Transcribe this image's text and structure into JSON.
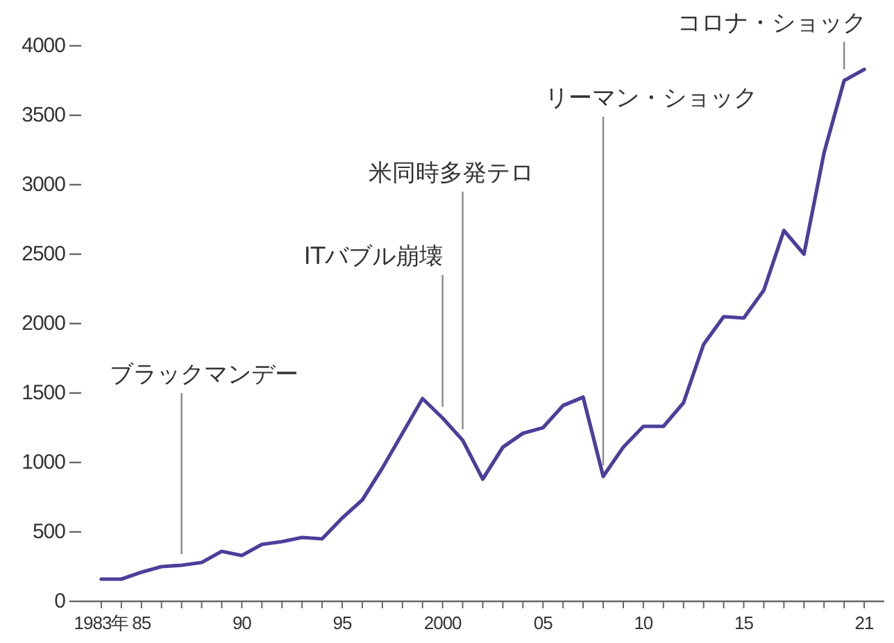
{
  "chart_data": {
    "type": "line",
    "x": [
      1983,
      1984,
      1985,
      1986,
      1987,
      1988,
      1989,
      1990,
      1991,
      1992,
      1993,
      1994,
      1995,
      1996,
      1997,
      1998,
      1999,
      2000,
      2001,
      2002,
      2003,
      2004,
      2005,
      2006,
      2007,
      2008,
      2009,
      2010,
      2011,
      2012,
      2013,
      2014,
      2015,
      2016,
      2017,
      2018,
      2019,
      2020,
      2021
    ],
    "series": [
      {
        "color": "#4b3f9c",
        "values": [
          160,
          160,
          210,
          250,
          260,
          280,
          360,
          330,
          410,
          430,
          460,
          450,
          600,
          730,
          960,
          1210,
          1460,
          1320,
          1160,
          880,
          1110,
          1210,
          1250,
          1410,
          1470,
          900,
          1110,
          1260,
          1260,
          1430,
          1850,
          2050,
          2040,
          2240,
          2670,
          2500,
          3230,
          3750,
          3830
        ]
      }
    ],
    "xlim": [
      1982,
      2022
    ],
    "ylim": [
      0,
      4000
    ],
    "xticks": [
      {
        "value": 1983,
        "label": "1983年"
      },
      {
        "value": 1984,
        "label": null
      },
      {
        "value": 1985,
        "label": "85"
      },
      {
        "value": 1986,
        "label": null
      },
      {
        "value": 1987,
        "label": null
      },
      {
        "value": 1988,
        "label": null
      },
      {
        "value": 1989,
        "label": null
      },
      {
        "value": 1990,
        "label": "90"
      },
      {
        "value": 1991,
        "label": null
      },
      {
        "value": 1992,
        "label": null
      },
      {
        "value": 1993,
        "label": null
      },
      {
        "value": 1994,
        "label": null
      },
      {
        "value": 1995,
        "label": "95"
      },
      {
        "value": 1996,
        "label": null
      },
      {
        "value": 1997,
        "label": null
      },
      {
        "value": 1998,
        "label": null
      },
      {
        "value": 1999,
        "label": null
      },
      {
        "value": 2000,
        "label": "2000"
      },
      {
        "value": 2001,
        "label": null
      },
      {
        "value": 2002,
        "label": null
      },
      {
        "value": 2003,
        "label": null
      },
      {
        "value": 2004,
        "label": null
      },
      {
        "value": 2005,
        "label": "05"
      },
      {
        "value": 2006,
        "label": null
      },
      {
        "value": 2007,
        "label": null
      },
      {
        "value": 2008,
        "label": null
      },
      {
        "value": 2009,
        "label": null
      },
      {
        "value": 2010,
        "label": "10"
      },
      {
        "value": 2011,
        "label": null
      },
      {
        "value": 2012,
        "label": null
      },
      {
        "value": 2013,
        "label": null
      },
      {
        "value": 2014,
        "label": null
      },
      {
        "value": 2015,
        "label": "15"
      },
      {
        "value": 2016,
        "label": null
      },
      {
        "value": 2017,
        "label": null
      },
      {
        "value": 2018,
        "label": null
      },
      {
        "value": 2019,
        "label": null
      },
      {
        "value": 2020,
        "label": null
      },
      {
        "value": 2021,
        "label": "21"
      }
    ],
    "yticks": [
      0,
      500,
      1000,
      1500,
      2000,
      2500,
      3000,
      3500,
      4000
    ],
    "marker": "none",
    "line_style": "solid",
    "grid": false,
    "annotations": [
      {
        "text": "ブラックマンデー",
        "x": 1987,
        "y": 260
      },
      {
        "text": "ITバブル崩壊",
        "x": 2000,
        "y": 1320
      },
      {
        "text": "米同時多発テロ",
        "x": 2001,
        "y": 1160
      },
      {
        "text": "リーマン・ショック",
        "x": 2008,
        "y": 900
      },
      {
        "text": "コロナ・ショック",
        "x": 2020,
        "y": 3750
      }
    ]
  }
}
